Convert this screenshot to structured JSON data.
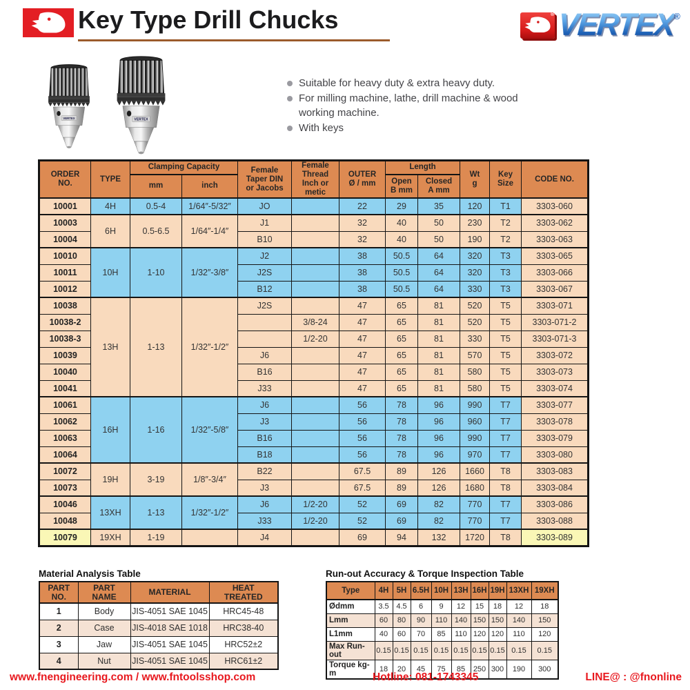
{
  "header": {
    "title": "Key Type Drill Chucks",
    "brand": "VERTEX",
    "registered": "®"
  },
  "features": [
    "Suitable for heavy duty & extra heavy duty.",
    "For milling machine, lathe, drill machine & wood working machine.",
    "With keys"
  ],
  "main_table": {
    "headers": {
      "order": "ORDER\nNO.",
      "type": "TYPE",
      "clamping": "Clamping Capacity",
      "mm": "mm",
      "inch": "inch",
      "taper": "Female\nTaper DIN\nor Jacobs",
      "thread": "Female\nThread\nInch or\nmetic",
      "outer": "OUTER\nØ / mm",
      "length": "Length",
      "open": "Open\nB mm",
      "closed": "Closed\nA mm",
      "wt": "Wt\ng",
      "key": "Key\nSize",
      "code": "CODE NO."
    },
    "groups": [
      {
        "type": "4H",
        "mm": "0.5-4",
        "inch": "1/64″-5/32″",
        "color": "blue",
        "rows": [
          {
            "order": "10001",
            "taper": "JO",
            "thread": "",
            "outer": "22",
            "open": "29",
            "closed": "35",
            "wt": "120",
            "key": "T1",
            "code": "3303-060"
          }
        ]
      },
      {
        "type": "6H",
        "mm": "0.5-6.5",
        "inch": "1/64″-1/4″",
        "color": "tan",
        "rows": [
          {
            "order": "10003",
            "taper": "J1",
            "thread": "",
            "outer": "32",
            "open": "40",
            "closed": "50",
            "wt": "230",
            "key": "T2",
            "code": "3303-062"
          },
          {
            "order": "10004",
            "taper": "B10",
            "thread": "",
            "outer": "32",
            "open": "40",
            "closed": "50",
            "wt": "190",
            "key": "T2",
            "code": "3303-063"
          }
        ]
      },
      {
        "type": "10H",
        "mm": "1-10",
        "inch": "1/32″-3/8″",
        "color": "blue",
        "rows": [
          {
            "order": "10010",
            "taper": "J2",
            "thread": "",
            "outer": "38",
            "open": "50.5",
            "closed": "64",
            "wt": "320",
            "key": "T3",
            "code": "3303-065"
          },
          {
            "order": "10011",
            "taper": "J2S",
            "thread": "",
            "outer": "38",
            "open": "50.5",
            "closed": "64",
            "wt": "320",
            "key": "T3",
            "code": "3303-066"
          },
          {
            "order": "10012",
            "taper": "B12",
            "thread": "",
            "outer": "38",
            "open": "50.5",
            "closed": "64",
            "wt": "330",
            "key": "T3",
            "code": "3303-067"
          }
        ]
      },
      {
        "type": "13H",
        "mm": "1-13",
        "inch": "1/32″-1/2″",
        "color": "tan",
        "rows": [
          {
            "order": "10038",
            "taper": "J2S",
            "thread": "",
            "outer": "47",
            "open": "65",
            "closed": "81",
            "wt": "520",
            "key": "T5",
            "code": "3303-071"
          },
          {
            "order": "10038-2",
            "taper": "",
            "thread": "3/8-24",
            "outer": "47",
            "open": "65",
            "closed": "81",
            "wt": "520",
            "key": "T5",
            "code": "3303-071-2"
          },
          {
            "order": "10038-3",
            "taper": "",
            "thread": "1/2-20",
            "outer": "47",
            "open": "65",
            "closed": "81",
            "wt": "330",
            "key": "T5",
            "code": "3303-071-3"
          },
          {
            "order": "10039",
            "taper": "J6",
            "thread": "",
            "outer": "47",
            "open": "65",
            "closed": "81",
            "wt": "570",
            "key": "T5",
            "code": "3303-072"
          },
          {
            "order": "10040",
            "taper": "B16",
            "thread": "",
            "outer": "47",
            "open": "65",
            "closed": "81",
            "wt": "580",
            "key": "T5",
            "code": "3303-073"
          },
          {
            "order": "10041",
            "taper": "J33",
            "thread": "",
            "outer": "47",
            "open": "65",
            "closed": "81",
            "wt": "580",
            "key": "T5",
            "code": "3303-074"
          }
        ]
      },
      {
        "type": "16H",
        "mm": "1-16",
        "inch": "1/32″-5/8″",
        "color": "blue",
        "rows": [
          {
            "order": "10061",
            "taper": "J6",
            "thread": "",
            "outer": "56",
            "open": "78",
            "closed": "96",
            "wt": "990",
            "key": "T7",
            "code": "3303-077"
          },
          {
            "order": "10062",
            "taper": "J3",
            "thread": "",
            "outer": "56",
            "open": "78",
            "closed": "96",
            "wt": "960",
            "key": "T7",
            "code": "3303-078"
          },
          {
            "order": "10063",
            "taper": "B16",
            "thread": "",
            "outer": "56",
            "open": "78",
            "closed": "96",
            "wt": "990",
            "key": "T7",
            "code": "3303-079"
          },
          {
            "order": "10064",
            "taper": "B18",
            "thread": "",
            "outer": "56",
            "open": "78",
            "closed": "96",
            "wt": "970",
            "key": "T7",
            "code": "3303-080"
          }
        ]
      },
      {
        "type": "19H",
        "mm": "3-19",
        "inch": "1/8″-3/4″",
        "color": "tan",
        "rows": [
          {
            "order": "10072",
            "taper": "B22",
            "thread": "",
            "outer": "67.5",
            "open": "89",
            "closed": "126",
            "wt": "1660",
            "key": "T8",
            "code": "3303-083"
          },
          {
            "order": "10073",
            "taper": "J3",
            "thread": "",
            "outer": "67.5",
            "open": "89",
            "closed": "126",
            "wt": "1680",
            "key": "T8",
            "code": "3303-084"
          }
        ]
      },
      {
        "type": "13XH",
        "mm": "1-13",
        "inch": "1/32″-1/2″",
        "color": "blue",
        "rows": [
          {
            "order": "10046",
            "taper": "J6",
            "thread": "1/2-20",
            "outer": "52",
            "open": "69",
            "closed": "82",
            "wt": "770",
            "key": "T7",
            "code": "3303-086"
          },
          {
            "order": "10048",
            "taper": "J33",
            "thread": "1/2-20",
            "outer": "52",
            "open": "69",
            "closed": "82",
            "wt": "770",
            "key": "T7",
            "code": "3303-088"
          }
        ]
      },
      {
        "type": "19XH",
        "mm": "1-19",
        "inch": "",
        "color": "tan",
        "rows": [
          {
            "order": "10079",
            "taper": "J4",
            "thread": "",
            "outer": "69",
            "open": "94",
            "closed": "132",
            "wt": "1720",
            "key": "T8",
            "code": "3303-089",
            "highlight": true
          }
        ]
      }
    ]
  },
  "material_table": {
    "title": "Material Analysis Table",
    "headers": [
      "PART\nNO.",
      "PART\nNAME",
      "MATERIAL",
      "HEAT\nTREATED"
    ],
    "rows": [
      [
        "1",
        "Body",
        "JIS-4051 SAE 1045",
        "HRC45-48"
      ],
      [
        "2",
        "Case",
        "JIS-4018 SAE 1018",
        "HRC38-40"
      ],
      [
        "3",
        "Jaw",
        "JIS-4051 SAE 1045",
        "HRC52±2"
      ],
      [
        "4",
        "Nut",
        "JIS-4051 SAE 1045",
        "HRC61±2"
      ]
    ]
  },
  "runout_table": {
    "title": "Run-out Accuracy & Torque Inspection Table",
    "headers": [
      "Type",
      "4H",
      "5H",
      "6.5H",
      "10H",
      "13H",
      "16H",
      "19H",
      "13XH",
      "19XH"
    ],
    "rows": [
      {
        "label": "Ødmm",
        "values": [
          "3.5",
          "4.5",
          "6",
          "9",
          "12",
          "15",
          "18",
          "12",
          "18"
        ]
      },
      {
        "label": "Lmm",
        "values": [
          "60",
          "80",
          "90",
          "110",
          "140",
          "150",
          "150",
          "140",
          "150"
        ]
      },
      {
        "label": "L1mm",
        "values": [
          "40",
          "60",
          "70",
          "85",
          "110",
          "120",
          "120",
          "110",
          "120"
        ]
      },
      {
        "label": "Max Run-out",
        "values": [
          "0.15",
          "0.15",
          "0.15",
          "0.15",
          "0.15",
          "0.15",
          "0.15",
          "0.15",
          "0.15"
        ]
      },
      {
        "label": "Torque kg-m",
        "values": [
          "18",
          "20",
          "45",
          "75",
          "85",
          "250",
          "300",
          "190",
          "300"
        ]
      }
    ]
  },
  "footer": {
    "websites": "www.fnengineering.com / www.fntoolsshop.com",
    "hotline": "Hotline: 081-1743345",
    "line": "LINE@ : @fnonline"
  },
  "colors": {
    "header_orange": "#DD8A52",
    "row_blue": "#8FD2F0",
    "row_tan": "#F9DABD",
    "highlight_yellow": "#FAF7B6",
    "footer_red": "#E8191F",
    "title_underline": "#9B5B2B",
    "brand_blue": "#2B6FC4",
    "logo_red": "#E31E24"
  }
}
